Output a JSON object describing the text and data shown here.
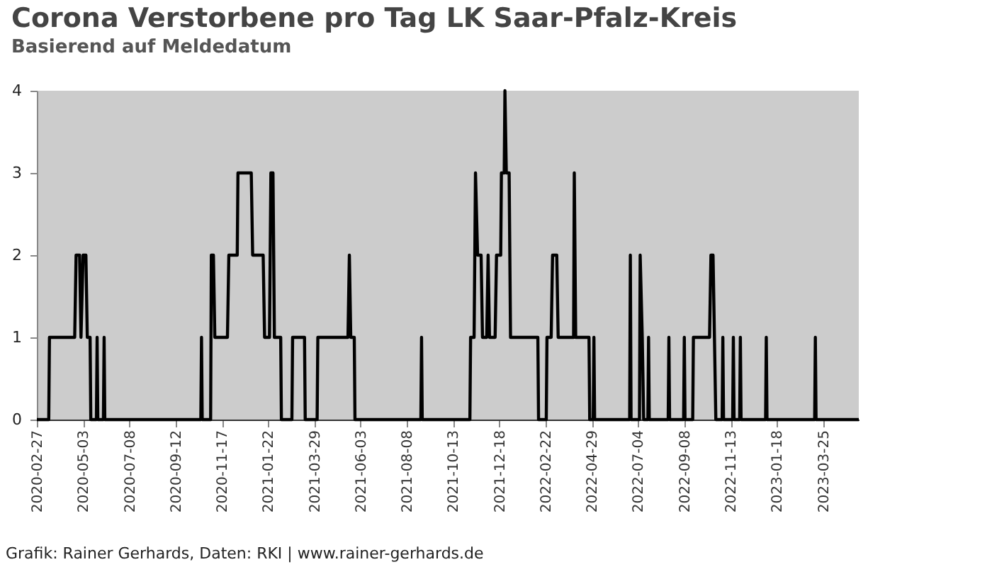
{
  "chart_data": {
    "type": "line",
    "title": "Corona Verstorbene pro Tag LK Saar-Pfalz-Kreis",
    "subtitle": "Basierend auf Meldedatum",
    "annotations": [
      "Grafik: Rainer Gerhards, Daten: RKI | www.rainer-gerhards.de"
    ],
    "x": [
      "2020-02-27",
      "2020-03-15",
      "2020-03-16",
      "2020-04-21",
      "2020-04-23",
      "2020-04-28",
      "2020-04-30",
      "2020-05-03",
      "2020-05-07",
      "2020-05-09",
      "2020-05-13",
      "2020-05-14",
      "2020-05-22",
      "2020-05-23",
      "2020-05-24",
      "2020-06-01",
      "2020-06-02",
      "2020-06-03",
      "2020-10-18",
      "2020-10-19",
      "2020-10-20",
      "2020-11-01",
      "2020-11-02",
      "2020-11-05",
      "2020-11-07",
      "2020-11-25",
      "2020-11-27",
      "2020-12-09",
      "2020-12-10",
      "2020-12-29",
      "2020-12-31",
      "2021-01-15",
      "2021-01-17",
      "2021-01-24",
      "2021-01-26",
      "2021-01-29",
      "2021-01-31",
      "2021-02-09",
      "2021-02-10",
      "2021-02-25",
      "2021-02-26",
      "2021-03-15",
      "2021-03-16",
      "2021-04-02",
      "2021-04-03",
      "2021-05-16",
      "2021-05-18",
      "2021-05-20",
      "2021-05-25",
      "2021-05-26",
      "2021-08-28",
      "2021-08-29",
      "2021-08-30",
      "2021-11-06",
      "2021-11-07",
      "2021-11-12",
      "2021-11-14",
      "2021-11-17",
      "2021-11-22",
      "2021-11-24",
      "2021-11-30",
      "2021-12-02",
      "2021-12-04",
      "2021-12-12",
      "2021-12-14",
      "2021-12-20",
      "2021-12-21",
      "2021-12-25",
      "2021-12-26",
      "2021-12-28",
      "2022-01-01",
      "2022-01-03",
      "2022-02-11",
      "2022-02-12",
      "2022-02-23",
      "2022-02-24",
      "2022-03-02",
      "2022-03-04",
      "2022-03-10",
      "2022-03-12",
      "2022-04-03",
      "2022-04-04",
      "2022-04-06",
      "2022-04-25",
      "2022-04-26",
      "2022-05-01",
      "2022-05-02",
      "2022-05-03",
      "2022-06-22",
      "2022-06-23",
      "2022-06-24",
      "2022-07-06",
      "2022-07-07",
      "2022-07-10",
      "2022-07-12",
      "2022-07-18",
      "2022-07-19",
      "2022-07-20",
      "2022-08-16",
      "2022-08-17",
      "2022-08-18",
      "2022-09-07",
      "2022-09-08",
      "2022-09-09",
      "2022-09-20",
      "2022-09-21",
      "2022-10-14",
      "2022-10-16",
      "2022-10-19",
      "2022-10-21",
      "2022-10-23",
      "2022-11-01",
      "2022-11-02",
      "2022-11-03",
      "2022-11-16",
      "2022-11-17",
      "2022-11-18",
      "2022-11-26",
      "2022-11-27",
      "2022-11-28",
      "2023-01-02",
      "2023-01-03",
      "2023-01-04",
      "2023-03-13",
      "2023-03-14",
      "2023-03-15",
      "2023-05-15"
    ],
    "series": [
      {
        "color": "#000000",
        "values": [
          0,
          0,
          1,
          1,
          2,
          2,
          1,
          2,
          2,
          1,
          1,
          0,
          0,
          1,
          0,
          0,
          1,
          0,
          0,
          1,
          0,
          0,
          2,
          2,
          1,
          1,
          2,
          2,
          3,
          3,
          2,
          2,
          1,
          1,
          3,
          3,
          1,
          1,
          0,
          0,
          1,
          1,
          0,
          0,
          1,
          1,
          2,
          1,
          1,
          0,
          0,
          1,
          0,
          0,
          1,
          1,
          3,
          2,
          2,
          1,
          1,
          2,
          1,
          1,
          2,
          2,
          3,
          3,
          4,
          3,
          3,
          1,
          1,
          0,
          0,
          1,
          1,
          2,
          2,
          1,
          1,
          3,
          1,
          1,
          0,
          0,
          1,
          0,
          0,
          2,
          0,
          0,
          2,
          1,
          0,
          0,
          1,
          0,
          0,
          1,
          0,
          0,
          1,
          0,
          0,
          1,
          1,
          2,
          2,
          1,
          0,
          0,
          1,
          0,
          0,
          1,
          0,
          0,
          1,
          0,
          0,
          1,
          0,
          0,
          1,
          0,
          0
        ]
      }
    ],
    "xlim": [
      "2020-02-27",
      "2023-05-15"
    ],
    "xticks": [
      "2020-02-27",
      "2020-05-03",
      "2020-07-08",
      "2020-09-12",
      "2020-11-17",
      "2021-01-22",
      "2021-03-29",
      "2021-06-03",
      "2021-08-08",
      "2021-10-13",
      "2021-12-18",
      "2022-02-22",
      "2022-04-29",
      "2022-07-04",
      "2022-09-08",
      "2022-11-13",
      "2023-01-18",
      "2023-03-25"
    ],
    "ylim": [
      0,
      4
    ],
    "yticks": [
      0,
      1,
      2,
      3,
      4
    ]
  }
}
